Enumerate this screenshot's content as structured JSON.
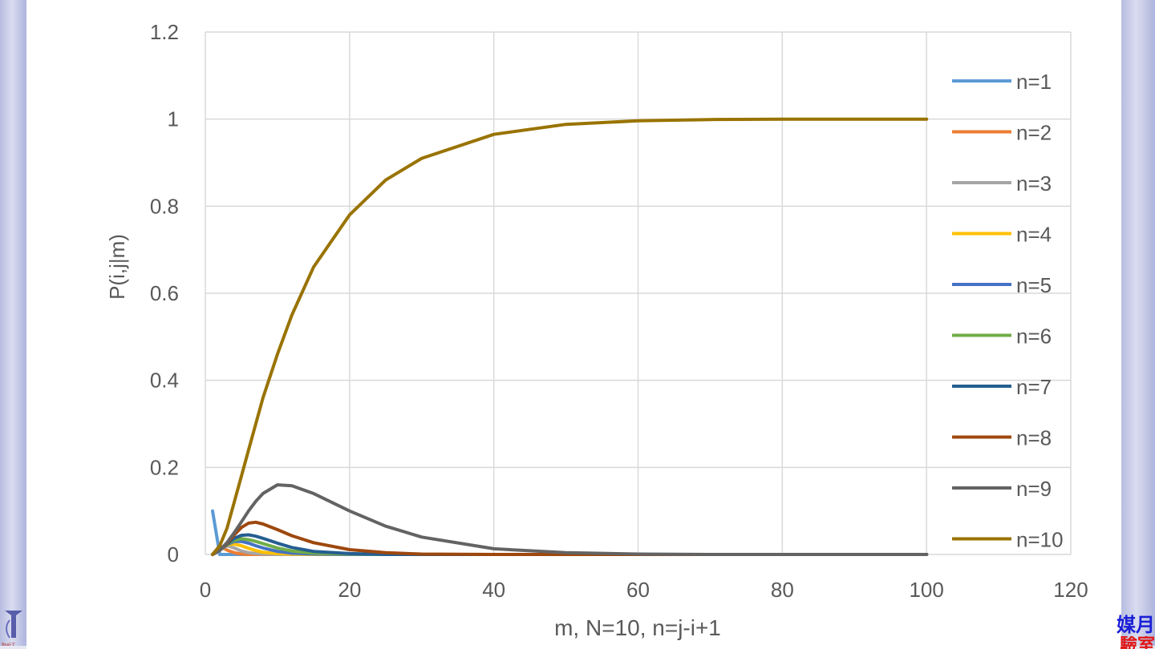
{
  "chart_data": {
    "type": "line",
    "title": "",
    "xlabel": "m, N=10, n=j-i+1",
    "ylabel": "P(i,j|m)",
    "xlim": [
      0,
      120
    ],
    "ylim": [
      0,
      1.2
    ],
    "xticks": [
      0,
      20,
      40,
      60,
      80,
      100,
      120
    ],
    "yticks": [
      0,
      0.2,
      0.4,
      0.6,
      0.8,
      1,
      1.2
    ],
    "xtick_labels": [
      "0",
      "20",
      "40",
      "60",
      "80",
      "100",
      "120"
    ],
    "ytick_labels": [
      "0",
      "0.2",
      "0.4",
      "0.6",
      "0.8",
      "1",
      "1.2"
    ],
    "grid": true,
    "legend_position": "right",
    "x": [
      1,
      2,
      3,
      4,
      5,
      6,
      7,
      8,
      10,
      12,
      15,
      20,
      25,
      30,
      40,
      50,
      60,
      70,
      80,
      90,
      100
    ],
    "series": [
      {
        "name": "n=1",
        "color": "#5b9bd5",
        "values": [
          0.1,
          0.0,
          0,
          0,
          0,
          0,
          0,
          0,
          0,
          0,
          0,
          0,
          0,
          0,
          0,
          0,
          0,
          0,
          0,
          0,
          0
        ]
      },
      {
        "name": "n=2",
        "color": "#ed7d31",
        "values": [
          0,
          0.02,
          0.01,
          0.004,
          0.001,
          0,
          0,
          0,
          0,
          0,
          0,
          0,
          0,
          0,
          0,
          0,
          0,
          0,
          0,
          0,
          0
        ]
      },
      {
        "name": "n=3",
        "color": "#a5a5a5",
        "values": [
          0,
          0.01,
          0.02,
          0.015,
          0.008,
          0.004,
          0.002,
          0.001,
          0,
          0,
          0,
          0,
          0,
          0,
          0,
          0,
          0,
          0,
          0,
          0,
          0
        ]
      },
      {
        "name": "n=4",
        "color": "#ffc000",
        "values": [
          0,
          0.01,
          0.022,
          0.024,
          0.02,
          0.014,
          0.009,
          0.005,
          0.002,
          0.001,
          0,
          0,
          0,
          0,
          0,
          0,
          0,
          0,
          0,
          0,
          0
        ]
      },
      {
        "name": "n=5",
        "color": "#4472c4",
        "values": [
          0,
          0.01,
          0.022,
          0.03,
          0.03,
          0.026,
          0.02,
          0.015,
          0.007,
          0.003,
          0.001,
          0,
          0,
          0,
          0,
          0,
          0,
          0,
          0,
          0,
          0
        ]
      },
      {
        "name": "n=6",
        "color": "#70ad47",
        "values": [
          0,
          0.01,
          0.023,
          0.033,
          0.036,
          0.034,
          0.03,
          0.025,
          0.015,
          0.008,
          0.003,
          0.001,
          0,
          0,
          0,
          0,
          0,
          0,
          0,
          0,
          0
        ]
      },
      {
        "name": "n=7",
        "color": "#255e91",
        "values": [
          0,
          0.01,
          0.024,
          0.037,
          0.044,
          0.045,
          0.042,
          0.037,
          0.026,
          0.016,
          0.007,
          0.002,
          0,
          0,
          0,
          0,
          0,
          0,
          0,
          0,
          0
        ]
      },
      {
        "name": "n=8",
        "color": "#9e480e",
        "values": [
          0,
          0.01,
          0.025,
          0.045,
          0.062,
          0.072,
          0.074,
          0.07,
          0.057,
          0.043,
          0.027,
          0.011,
          0.004,
          0.001,
          0,
          0,
          0,
          0,
          0,
          0,
          0
        ]
      },
      {
        "name": "n=9",
        "color": "#636363",
        "values": [
          0,
          0.01,
          0.027,
          0.05,
          0.075,
          0.1,
          0.122,
          0.14,
          0.16,
          0.158,
          0.14,
          0.1,
          0.065,
          0.04,
          0.013,
          0.004,
          0.001,
          0,
          0,
          0,
          0
        ]
      },
      {
        "name": "n=10",
        "color": "#997300",
        "values": [
          0,
          0.02,
          0.06,
          0.12,
          0.18,
          0.24,
          0.3,
          0.36,
          0.46,
          0.55,
          0.66,
          0.78,
          0.86,
          0.91,
          0.965,
          0.988,
          0.996,
          0.999,
          1,
          1,
          1
        ]
      }
    ]
  },
  "branding": {
    "logo_caption": "Real-T",
    "cjk_line1": "媒月",
    "cjk_line2": "驗室"
  }
}
